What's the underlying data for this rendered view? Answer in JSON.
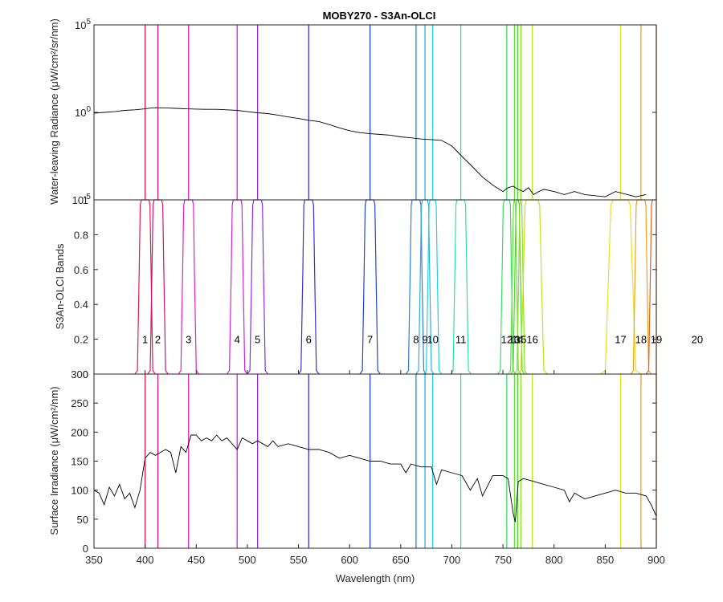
{
  "chart_data": [
    {
      "type": "line",
      "panel": "top",
      "title": "MOBY270 - S3An-OLCI",
      "ylabel": "Water-leaving Radiance (μW/cm²/sr/nm)",
      "yscale": "log",
      "ylim": [
        1e-05,
        100000.0
      ],
      "yticks": [
        {
          "base": "10",
          "exp": "5",
          "value": 100000
        },
        {
          "base": "10",
          "exp": "0",
          "value": 1
        },
        {
          "base": "10",
          "exp": "-5",
          "value": 1e-05
        }
      ],
      "xlim": [
        350,
        900
      ],
      "grid": false,
      "series": [
        {
          "color": "#000000",
          "x": [
            350,
            360,
            370,
            380,
            390,
            395,
            400,
            405,
            410,
            420,
            430,
            440,
            450,
            460,
            470,
            480,
            490,
            500,
            510,
            520,
            530,
            540,
            550,
            560,
            570,
            580,
            590,
            600,
            610,
            620,
            630,
            640,
            650,
            660,
            670,
            680,
            690,
            700,
            710,
            720,
            730,
            740,
            750,
            755,
            760,
            765,
            770,
            775,
            780,
            785,
            790,
            800,
            810,
            820,
            830,
            850,
            860,
            880,
            890
          ],
          "y": [
            0.9,
            1.0,
            1.1,
            1.3,
            1.4,
            1.5,
            1.6,
            1.75,
            1.85,
            1.8,
            1.7,
            1.6,
            1.55,
            1.5,
            1.5,
            1.4,
            1.3,
            1.1,
            0.95,
            0.85,
            0.7,
            0.55,
            0.45,
            0.35,
            0.3,
            0.2,
            0.13,
            0.09,
            0.07,
            0.06,
            0.055,
            0.05,
            0.04,
            0.035,
            0.03,
            0.028,
            0.025,
            0.012,
            0.003,
            0.0008,
            0.0002,
            7e-05,
            3e-05,
            5e-05,
            6e-05,
            4e-05,
            3e-05,
            5e-05,
            2e-05,
            3e-05,
            4e-05,
            3e-05,
            2e-05,
            3e-05,
            2e-05,
            1.5e-05,
            3e-05,
            1.5e-05,
            2e-05
          ]
        }
      ]
    },
    {
      "type": "line",
      "panel": "middle",
      "ylabel": "S3An-OLCI Bands",
      "ylim": [
        0,
        1
      ],
      "yticks": [
        "0",
        "0.2",
        "0.4",
        "0.6",
        "0.8",
        "1"
      ],
      "ytick_values": [
        0,
        0.2,
        0.4,
        0.6,
        0.8,
        1
      ],
      "xlim": [
        350,
        900
      ],
      "grid": false,
      "band_label_y": 0.2,
      "bands": [
        {
          "label": "1",
          "center": 400,
          "lo": 395,
          "hi": 405,
          "color": "#e6194b",
          "line_x": 400
        },
        {
          "label": "2",
          "center": 412.5,
          "lo": 407.5,
          "hi": 417.5,
          "color": "#c8157a",
          "line_x": 412.5
        },
        {
          "label": "3",
          "center": 442.5,
          "lo": 437.5,
          "hi": 447.5,
          "color": "#e020c0",
          "line_x": 442.5
        },
        {
          "label": "4",
          "center": 490,
          "lo": 485,
          "hi": 495,
          "color": "#cc22dd",
          "line_x": 490
        },
        {
          "label": "5",
          "center": 510,
          "lo": 505,
          "hi": 515,
          "color": "#8a2be2",
          "line_x": 510
        },
        {
          "label": "6",
          "center": 560,
          "lo": 555,
          "hi": 565,
          "color": "#3b2fd6",
          "line_x": 560
        },
        {
          "label": "7",
          "center": 620,
          "lo": 615,
          "hi": 625,
          "color": "#2344d8",
          "line_x": 620
        },
        {
          "label": "8",
          "center": 665,
          "lo": 660,
          "hi": 670,
          "color": "#2a7de1",
          "line_x": 665
        },
        {
          "label": "9",
          "center": 673.75,
          "lo": 670,
          "hi": 677.5,
          "color": "#26b0e8",
          "line_x": 673.75
        },
        {
          "label": "10",
          "center": 681.25,
          "lo": 677.5,
          "hi": 685,
          "color": "#22d0e0",
          "line_x": 681.25
        },
        {
          "label": "11",
          "center": 708.75,
          "lo": 703.75,
          "hi": 713.75,
          "color": "#2ee0a8",
          "line_x": 708.75
        },
        {
          "label": "12",
          "center": 753.75,
          "lo": 750,
          "hi": 757.5,
          "color": "#34e060",
          "line_x": 753.75
        },
        {
          "label": "13",
          "center": 761.25,
          "lo": 760,
          "hi": 762.5,
          "color": "#66e035",
          "line_x": 761.25
        },
        {
          "label": "14",
          "center": 764.375,
          "lo": 762.5,
          "hi": 766.25,
          "color": "#44dd22",
          "line_x": 764.375
        },
        {
          "label": "15",
          "center": 767.5,
          "lo": 766.25,
          "hi": 768.75,
          "color": "#8ce020",
          "line_x": 767.5
        },
        {
          "label": "16",
          "center": 778.75,
          "lo": 771.25,
          "hi": 786.25,
          "color": "#c8e020",
          "line_x": 778.75
        },
        {
          "label": "17",
          "center": 865,
          "lo": 855,
          "hi": 875,
          "color": "#e8e020",
          "line_x": 865
        },
        {
          "label": "18",
          "center": 885,
          "lo": 880,
          "hi": 890,
          "color": "#f0a020",
          "line_x": 885
        },
        {
          "label": "19",
          "center": 900,
          "lo": 895,
          "hi": 905,
          "color": "#e06020",
          "line_x": 900
        },
        {
          "label": "20",
          "center": 940,
          "lo": 935,
          "hi": 945,
          "color": "#c02010",
          "line_x": null
        }
      ]
    },
    {
      "type": "line",
      "panel": "bottom",
      "ylabel": "Surface Irradiance (μW/cm²/nm)",
      "xlabel": "Wavelength (nm)",
      "ylim": [
        0,
        300
      ],
      "yticks": [
        "0",
        "50",
        "100",
        "150",
        "200",
        "250",
        "300"
      ],
      "ytick_values": [
        0,
        50,
        100,
        150,
        200,
        250,
        300
      ],
      "xlim": [
        350,
        900
      ],
      "xticks": [
        "350",
        "400",
        "450",
        "500",
        "550",
        "600",
        "650",
        "700",
        "750",
        "800",
        "850",
        "900"
      ],
      "xtick_values": [
        350,
        400,
        450,
        500,
        550,
        600,
        650,
        700,
        750,
        800,
        850,
        900
      ],
      "grid": false,
      "series": [
        {
          "color": "#000000",
          "x": [
            350,
            355,
            360,
            365,
            370,
            375,
            380,
            385,
            390,
            395,
            400,
            405,
            410,
            415,
            420,
            425,
            430,
            435,
            440,
            445,
            450,
            455,
            460,
            465,
            470,
            475,
            480,
            485,
            490,
            495,
            500,
            505,
            510,
            515,
            520,
            525,
            530,
            540,
            550,
            560,
            570,
            580,
            590,
            600,
            610,
            620,
            630,
            640,
            650,
            655,
            660,
            670,
            680,
            685,
            690,
            700,
            710,
            718,
            725,
            730,
            740,
            750,
            755,
            760,
            762,
            765,
            770,
            780,
            790,
            800,
            810,
            815,
            820,
            830,
            840,
            850,
            860,
            870,
            880,
            890,
            895,
            900
          ],
          "y": [
            100,
            95,
            75,
            105,
            90,
            110,
            85,
            95,
            70,
            100,
            155,
            165,
            160,
            165,
            170,
            165,
            130,
            175,
            165,
            195,
            195,
            185,
            190,
            185,
            195,
            185,
            190,
            180,
            170,
            190,
            185,
            180,
            185,
            180,
            175,
            185,
            175,
            180,
            175,
            170,
            170,
            165,
            155,
            160,
            155,
            150,
            150,
            145,
            145,
            130,
            145,
            140,
            140,
            110,
            135,
            130,
            125,
            100,
            120,
            90,
            125,
            125,
            120,
            60,
            45,
            115,
            120,
            115,
            110,
            105,
            100,
            80,
            95,
            85,
            90,
            95,
            100,
            95,
            95,
            90,
            75,
            55
          ]
        }
      ]
    }
  ]
}
